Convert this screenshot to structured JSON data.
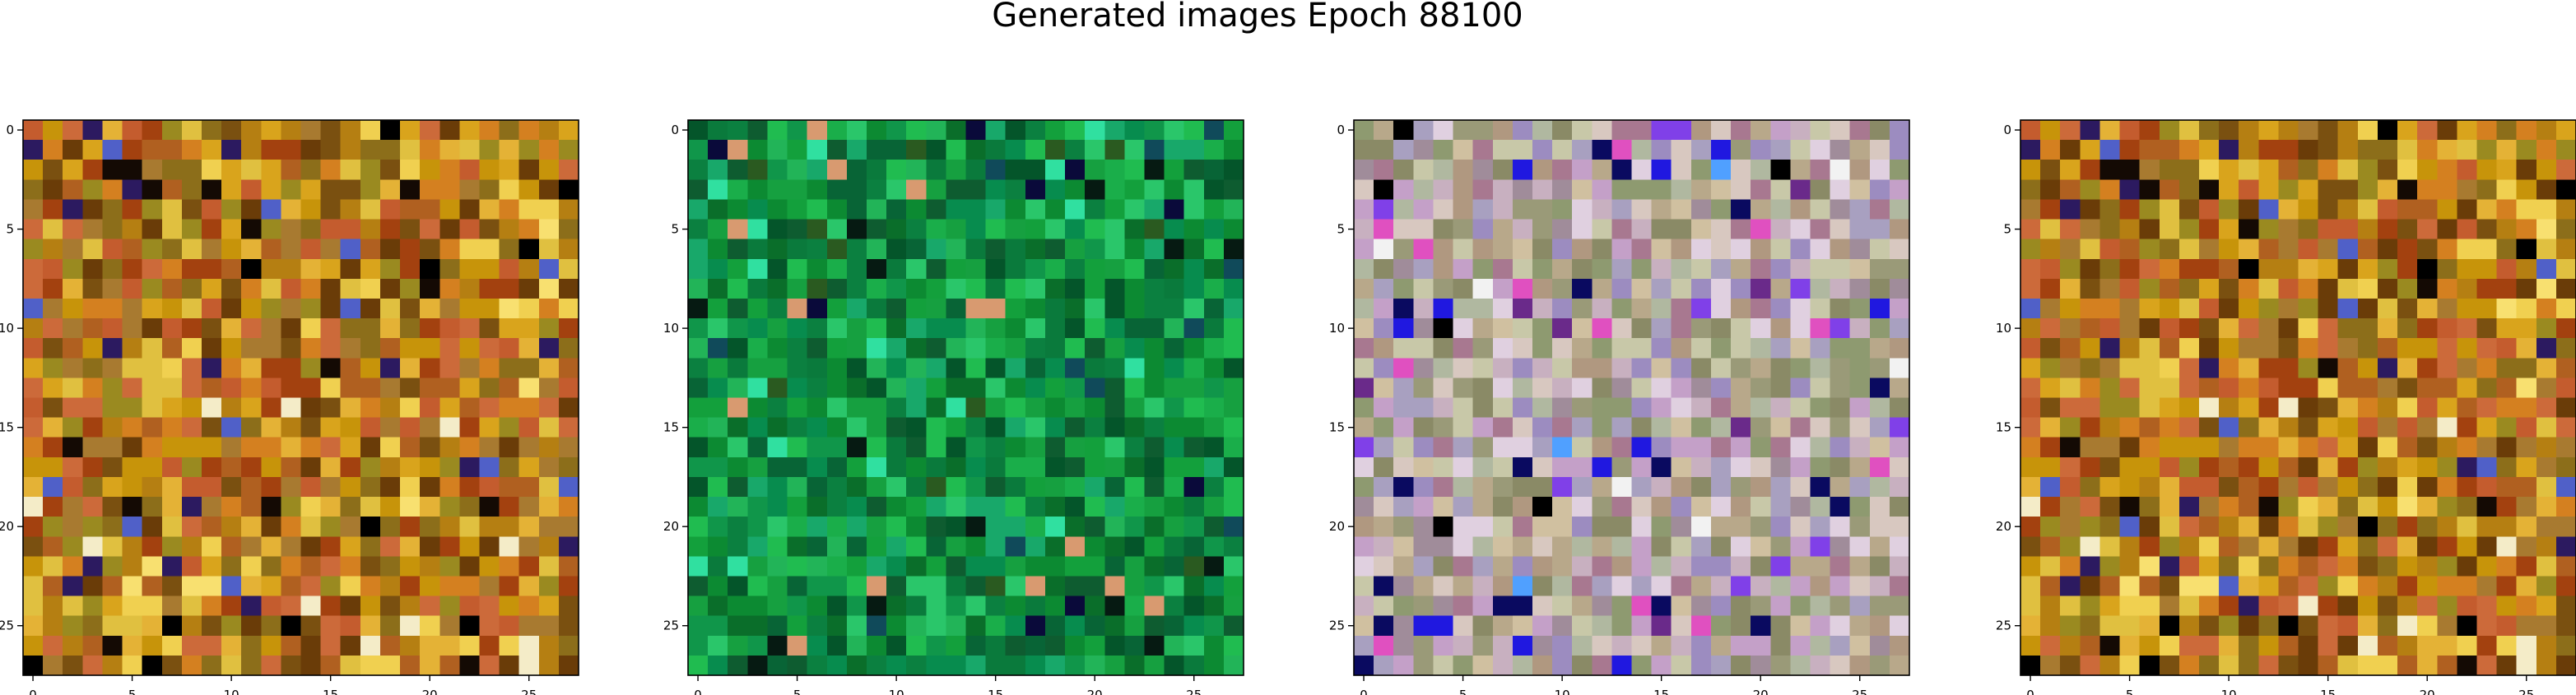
{
  "figure": {
    "title": "Generated images Epoch 88100"
  },
  "chart_data": [
    {
      "type": "heatmap",
      "grid": [
        28,
        28
      ],
      "xlim": [
        -0.5,
        27.5
      ],
      "ylim": [
        27.5,
        -0.5
      ],
      "xticks": [
        0,
        5,
        10,
        15,
        20,
        25
      ],
      "yticks": [
        0,
        5,
        10,
        15,
        20,
        25
      ],
      "palette": [
        "#b57f12",
        "#c7940a",
        "#d9a41c",
        "#e4b236",
        "#c45c2e",
        "#a3410f",
        "#8c6e1a",
        "#e0c040",
        "#b06020",
        "#d48020",
        "#9a8a20",
        "#7a5010",
        "#f0d050",
        "#cc6a3a",
        "#a87a30",
        "#6a3c08"
      ],
      "accents": [
        "#140a04",
        "#000000",
        "#f4ecc8",
        "#5060c8",
        "#2c1a60",
        "#f8e070"
      ],
      "seed": 11
    },
    {
      "type": "heatmap",
      "grid": [
        28,
        28
      ],
      "xlim": [
        -0.5,
        27.5
      ],
      "ylim": [
        27.5,
        -0.5
      ],
      "xticks": [
        0,
        5,
        10,
        15,
        20,
        25
      ],
      "yticks": [
        0,
        5,
        10,
        15,
        20,
        25
      ],
      "palette": [
        "#0c8a32",
        "#13a03c",
        "#078c4e",
        "#1aae4a",
        "#0a6e2a",
        "#04552a",
        "#22b458",
        "#10964a",
        "#0a7a3c",
        "#18a86a",
        "#2ac66a",
        "#0e5c30",
        "#16a040",
        "#0b8040",
        "#20bc50",
        "#086436"
      ],
      "accents": [
        "#061a12",
        "#0a0a3a",
        "#104a5a",
        "#30e0a0",
        "#d89a70",
        "#2a5a20"
      ],
      "seed": 23
    },
    {
      "type": "heatmap",
      "grid": [
        28,
        28
      ],
      "xlim": [
        -0.5,
        27.5
      ],
      "ylim": [
        27.5,
        -0.5
      ],
      "xticks": [
        0,
        5,
        10,
        15,
        20,
        25
      ],
      "yticks": [
        0,
        5,
        10,
        15,
        20,
        25
      ],
      "palette": [
        "#b8a88a",
        "#9a9a78",
        "#c8b0c0",
        "#a08c9a",
        "#d0c0a0",
        "#8a8a66",
        "#c4a0c8",
        "#b0b8a0",
        "#a8a0c0",
        "#d8c8c0",
        "#8e9a70",
        "#e0d0e0",
        "#b09880",
        "#9c8cc0",
        "#c8c8a8",
        "#a87890"
      ],
      "accents": [
        "#2018e0",
        "#6a2a8a",
        "#000000",
        "#0a0a60",
        "#f2f2f2",
        "#e050c0",
        "#8040e8",
        "#50a0ff"
      ],
      "seed": 37
    },
    {
      "type": "heatmap",
      "grid": [
        28,
        28
      ],
      "xlim": [
        -0.5,
        27.5
      ],
      "ylim": [
        27.5,
        -0.5
      ],
      "xticks": [
        0,
        5,
        10,
        15,
        20,
        25
      ],
      "yticks": [
        0,
        5,
        10,
        15,
        20,
        25
      ],
      "palette": [
        "#b57f12",
        "#c7940a",
        "#d9a41c",
        "#e4b236",
        "#c45c2e",
        "#a3410f",
        "#8c6e1a",
        "#e0c040",
        "#b06020",
        "#d48020",
        "#9a8a20",
        "#7a5010",
        "#f0d050",
        "#cc6a3a",
        "#a87a30",
        "#6a3c08"
      ],
      "accents": [
        "#140a04",
        "#000000",
        "#f4ecc8",
        "#5060c8",
        "#2c1a60",
        "#f8e070"
      ],
      "seed": 11
    }
  ]
}
